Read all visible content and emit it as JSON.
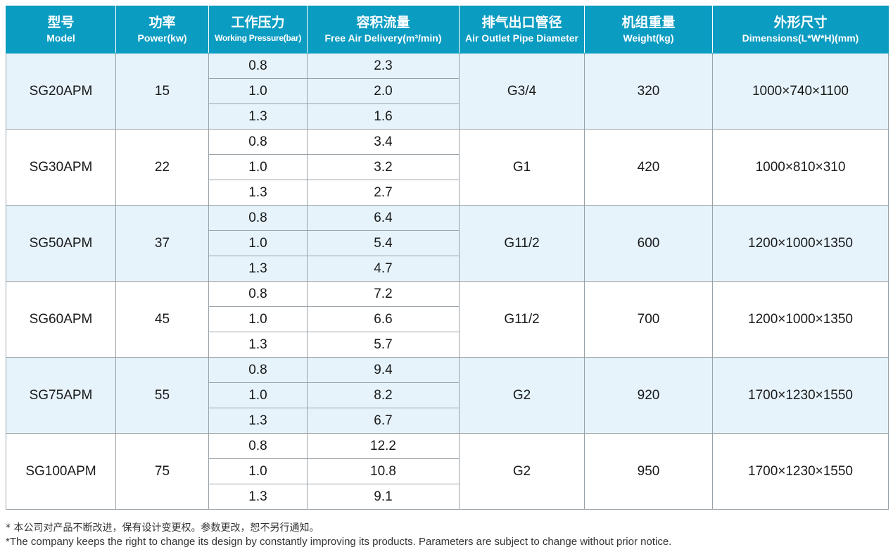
{
  "headers": [
    {
      "cn": "型号",
      "en": "Model"
    },
    {
      "cn": "功率",
      "en": "Power(kw)"
    },
    {
      "cn": "工作压力",
      "en": "Working Pressure(bar)"
    },
    {
      "cn": "容积流量",
      "en": "Free Air Delivery(m³/min)"
    },
    {
      "cn": "排气出口管径",
      "en": "Air Outlet Pipe Diameter"
    },
    {
      "cn": "机组重量",
      "en": "Weight(kg)"
    },
    {
      "cn": "外形尺寸",
      "en": "Dimensions(L*W*H)(mm)"
    }
  ],
  "models": [
    {
      "model": "SG20APM",
      "power": "15",
      "pressures": [
        "0.8",
        "1.0",
        "1.3"
      ],
      "flows": [
        "2.3",
        "2.0",
        "1.6"
      ],
      "outlet": "G3/4",
      "weight": "320",
      "dimensions": "1000×740×1100"
    },
    {
      "model": "SG30APM",
      "power": "22",
      "pressures": [
        "0.8",
        "1.0",
        "1.3"
      ],
      "flows": [
        "3.4",
        "3.2",
        "2.7"
      ],
      "outlet": "G1",
      "weight": "420",
      "dimensions": "1000×810×310"
    },
    {
      "model": "SG50APM",
      "power": "37",
      "pressures": [
        "0.8",
        "1.0",
        "1.3"
      ],
      "flows": [
        "6.4",
        "5.4",
        "4.7"
      ],
      "outlet": "G11/2",
      "weight": "600",
      "dimensions": "1200×1000×1350"
    },
    {
      "model": "SG60APM",
      "power": "45",
      "pressures": [
        "0.8",
        "1.0",
        "1.3"
      ],
      "flows": [
        "7.2",
        "6.6",
        "5.7"
      ],
      "outlet": "G11/2",
      "weight": "700",
      "dimensions": "1200×1000×1350"
    },
    {
      "model": "SG75APM",
      "power": "55",
      "pressures": [
        "0.8",
        "1.0",
        "1.3"
      ],
      "flows": [
        "9.4",
        "8.2",
        "6.7"
      ],
      "outlet": "G2",
      "weight": "920",
      "dimensions": "1700×1230×1550"
    },
    {
      "model": "SG100APM",
      "power": "75",
      "pressures": [
        "0.8",
        "1.0",
        "1.3"
      ],
      "flows": [
        "12.2",
        "10.8",
        "9.1"
      ],
      "outlet": "G2",
      "weight": "950",
      "dimensions": "1700×1230×1550"
    }
  ],
  "notes": {
    "cn": "* 本公司对产品不断改进，保有设计变更权。参数更改，恕不另行通知。",
    "en": "*The company keeps the right to change its design by constantly improving its products. Parameters are subject to change without prior notice."
  },
  "colors": {
    "header_bg": "#0b9cc2",
    "row_shade": "#e6f3fb",
    "grid": "#9aa3aa"
  }
}
